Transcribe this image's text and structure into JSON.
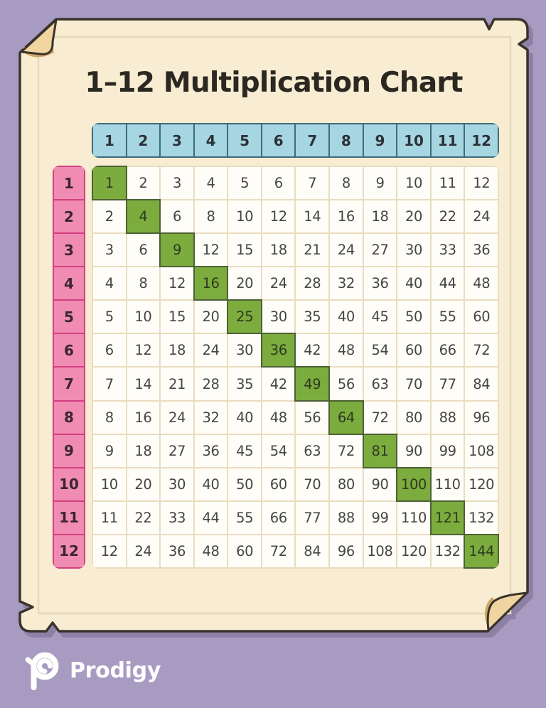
{
  "title": "1–12 Multiplication Chart",
  "footer": {
    "brand": "Prodigy"
  },
  "colors": {
    "bg": "#a79bc2",
    "shadow": "#8d80a5",
    "paper": "#f8edd2",
    "outline": "#3a332c",
    "flap": "#f0d5a1",
    "flap_shadow": "#cda767",
    "inner_line": "#e7d9b8",
    "blue": "#a6d6e1",
    "blue_border": "#3e6b77",
    "pink": "#f08cb1",
    "pink_border": "#d23f80",
    "green": "#7cac3e",
    "green_border": "#4c6134",
    "cell": "#fffdf7",
    "gridline": "#e9dcc0",
    "num": "#454545",
    "title": "#2b2822"
  },
  "chart_data": {
    "type": "table",
    "title": "1–12 Multiplication Chart",
    "column_headers": [
      "1",
      "2",
      "3",
      "4",
      "5",
      "6",
      "7",
      "8",
      "9",
      "10",
      "11",
      "12"
    ],
    "row_headers": [
      "1",
      "2",
      "3",
      "4",
      "5",
      "6",
      "7",
      "8",
      "9",
      "10",
      "11",
      "12"
    ],
    "rows": [
      [
        1,
        2,
        3,
        4,
        5,
        6,
        7,
        8,
        9,
        10,
        11,
        12
      ],
      [
        2,
        4,
        6,
        8,
        10,
        12,
        14,
        16,
        18,
        20,
        22,
        24
      ],
      [
        3,
        6,
        9,
        12,
        15,
        18,
        21,
        24,
        27,
        30,
        33,
        36
      ],
      [
        4,
        8,
        12,
        16,
        20,
        24,
        28,
        32,
        36,
        40,
        44,
        48
      ],
      [
        5,
        10,
        15,
        20,
        25,
        30,
        35,
        40,
        45,
        50,
        55,
        60
      ],
      [
        6,
        12,
        18,
        24,
        30,
        36,
        42,
        48,
        54,
        60,
        66,
        72
      ],
      [
        7,
        14,
        21,
        28,
        35,
        42,
        49,
        56,
        63,
        70,
        77,
        84
      ],
      [
        8,
        16,
        24,
        32,
        40,
        48,
        56,
        64,
        72,
        80,
        88,
        96
      ],
      [
        9,
        18,
        27,
        36,
        45,
        54,
        63,
        72,
        81,
        90,
        99,
        108
      ],
      [
        10,
        20,
        30,
        40,
        50,
        60,
        70,
        80,
        90,
        100,
        110,
        120
      ],
      [
        11,
        22,
        33,
        44,
        55,
        66,
        77,
        88,
        99,
        110,
        121,
        132
      ],
      [
        12,
        24,
        36,
        48,
        60,
        72,
        84,
        96,
        108,
        120,
        132,
        144
      ]
    ],
    "highlight": {
      "rule": "diagonal perfect squares highlighted green",
      "values": [
        1,
        4,
        9,
        16,
        25,
        36,
        49,
        64,
        81,
        100,
        121,
        144
      ]
    },
    "layout_hints": {
      "column_header_color": "light blue",
      "row_header_color": "pink",
      "highlight_color": "green",
      "background": "cream paper sheet on purple backdrop"
    }
  }
}
